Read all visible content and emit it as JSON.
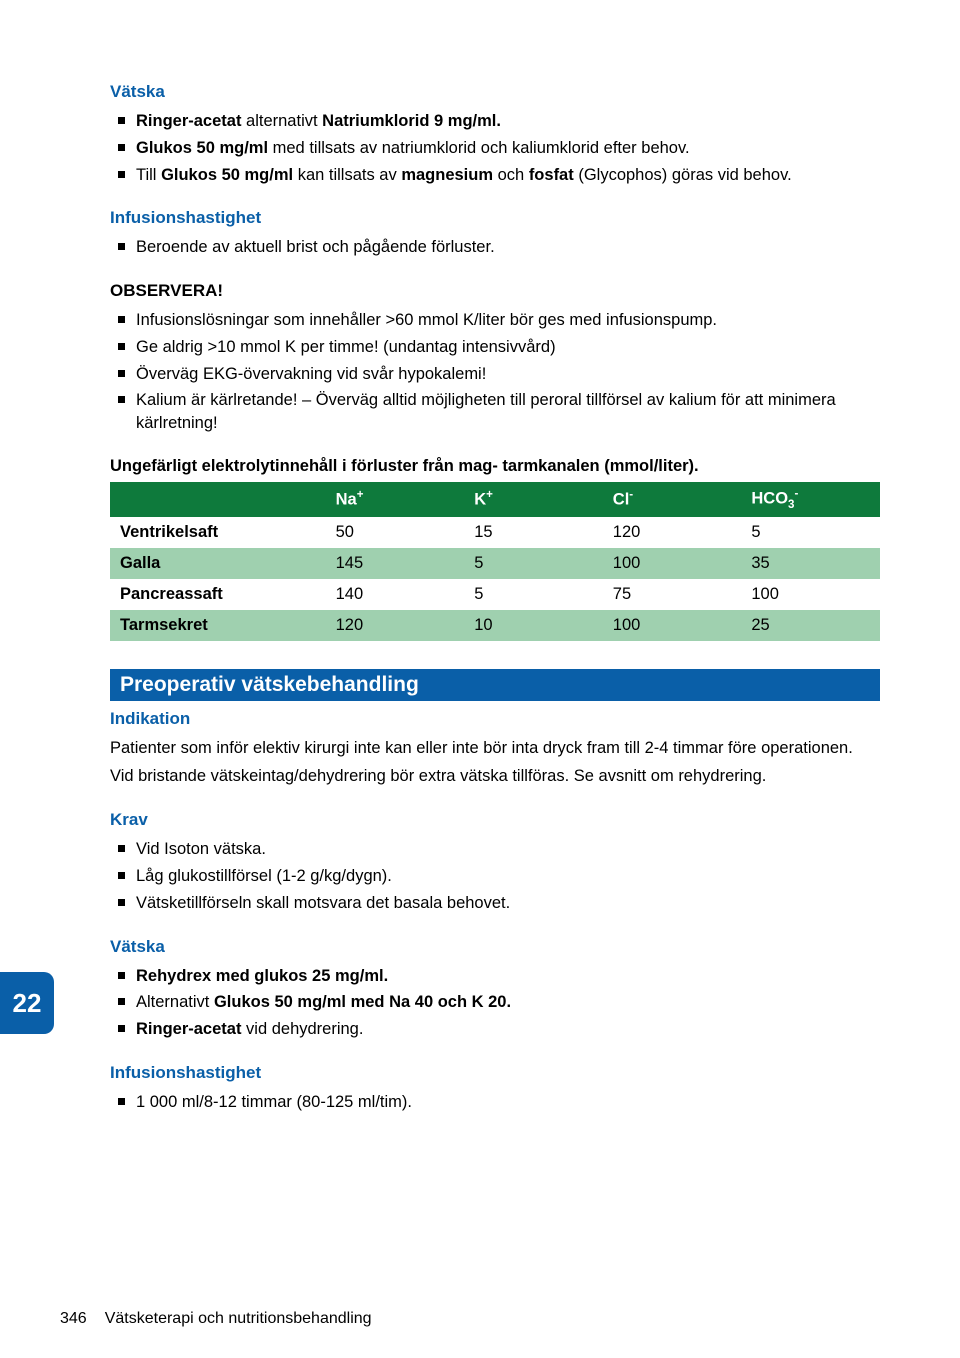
{
  "colors": {
    "blue_heading": "#0a5fa8",
    "section_bar_bg": "#0a5fa8",
    "table_header_bg": "#0e7a3c",
    "table_row_alt_bg": "#9fd0af",
    "page_tab_bg": "#0a5fa8",
    "text": "#000000"
  },
  "s1": {
    "title": "Vätska",
    "items": [
      {
        "pre": "",
        "bold1": "Ringer-acetat",
        "mid": " alternativt ",
        "bold2": "Natriumklorid 9 mg/ml.",
        "post": ""
      },
      {
        "pre": "",
        "bold1": "Glukos 50 mg/ml",
        "mid": " med tillsats av natriumklorid och kaliumklorid efter behov.",
        "bold2": "",
        "post": ""
      },
      {
        "pre": "Till ",
        "bold1": "Glukos 50 mg/ml",
        "mid": " kan tillsats av ",
        "bold2": "magnesium",
        "post2": " och ",
        "bold3": "fosfat",
        "post": " (Glycophos) göras vid behov."
      }
    ]
  },
  "s2": {
    "title": "Infusionshastighet",
    "items": [
      "Beroende av aktuell brist och pågående förluster."
    ]
  },
  "s3": {
    "title": "OBSERVERA!",
    "items": [
      "Infusionslösningar som innehåller >60 mmol K/liter bör ges med infusionspump.",
      "Ge aldrig >10 mmol K per timme! (undantag intensivvård)",
      "Överväg EKG-övervakning vid svår hypokalemi!",
      "Kalium är kärlretande! – Överväg alltid möjligheten till peroral tillförsel av kalium för att minimera kärlretning!"
    ]
  },
  "table": {
    "caption": "Ungefärligt elektrolytinnehåll i förluster från mag- tarmkanalen (mmol/liter).",
    "columns": [
      "",
      "Na",
      "K",
      "Cl",
      "HCO"
    ],
    "col_sup": [
      "",
      "+",
      "+",
      "-",
      ""
    ],
    "col_sub": [
      "",
      "",
      "",
      "",
      "3"
    ],
    "col_sup2": [
      "",
      "",
      "",
      "",
      "-"
    ],
    "col_widths": [
      "28%",
      "18%",
      "18%",
      "18%",
      "18%"
    ],
    "rows": [
      {
        "label": "Ventrikelsaft",
        "vals": [
          "50",
          "15",
          "120",
          "5"
        ],
        "bg": "#ffffff"
      },
      {
        "label": "Galla",
        "vals": [
          "145",
          "5",
          "100",
          "35"
        ],
        "bg": "#9fd0af"
      },
      {
        "label": "Pancreassaft",
        "vals": [
          "140",
          "5",
          "75",
          "100"
        ],
        "bg": "#ffffff"
      },
      {
        "label": "Tarmsekret",
        "vals": [
          "120",
          "10",
          "100",
          "25"
        ],
        "bg": "#9fd0af"
      }
    ]
  },
  "sectionBar": "Preoperativ vätskebehandling",
  "s4": {
    "title": "Indikation",
    "paras": [
      "Patienter som inför elektiv kirurgi inte kan eller inte bör inta dryck fram till 2-4 timmar före operationen.",
      "Vid bristande vätskeintag/dehydrering bör extra vätska tillföras. Se avsnitt om rehydrering."
    ]
  },
  "s5": {
    "title": "Krav",
    "items": [
      "Vid Isoton vätska.",
      "Låg glukostillförsel (1-2 g/kg/dygn).",
      "Vätsketillförseln skall motsvara det basala behovet."
    ]
  },
  "s6": {
    "title": "Vätska",
    "items": [
      {
        "bold": "Rehydrex med glukos 25 mg/ml.",
        "rest": ""
      },
      {
        "pre": "Alternativt ",
        "bold": "Glukos 50 mg/ml med Na 40 och K 20.",
        "rest": ""
      },
      {
        "bold": "Ringer-acetat",
        "rest": " vid dehydrering."
      }
    ]
  },
  "s7": {
    "title": "Infusionshastighet",
    "items": [
      "1 000 ml/8-12 timmar (80-125 ml/tim)."
    ]
  },
  "pageTab": "22",
  "footer": {
    "num": "346",
    "text": "Vätsketerapi och nutritionsbehandling"
  }
}
